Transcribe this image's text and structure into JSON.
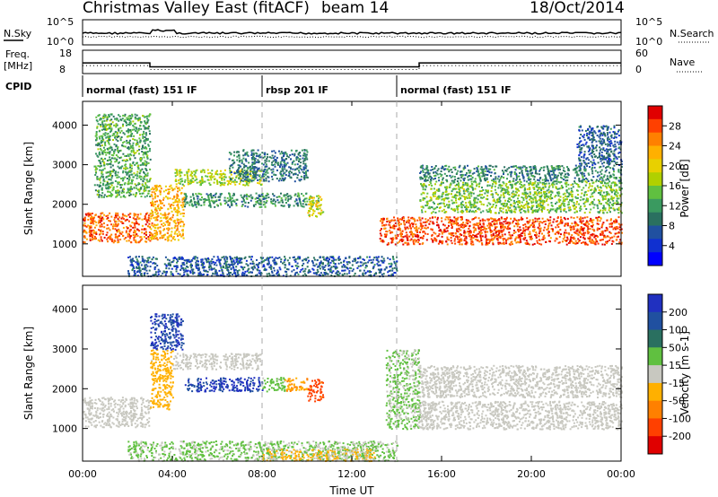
{
  "header": {
    "title": "Christmas Valley East (fitACF)",
    "beam": "beam 14",
    "date": "18/Oct/2014"
  },
  "panels": {
    "nsky_label": "N.Sky",
    "nsearch_label": "N.Search",
    "freq_label_1": "Freq.",
    "freq_label_2": "[MHz]",
    "nave_label": "Nave",
    "cpid_label": "CPID",
    "nsky_ticks": [
      "10^5",
      "10^0"
    ],
    "nsearch_ticks": [
      "10^5",
      "10^0"
    ],
    "freq_ticks": [
      "18",
      "8"
    ],
    "nave_ticks": [
      "60",
      "0"
    ],
    "cpid_segments": [
      {
        "label": "normal (fast) 151 IF",
        "start": 0,
        "end": 8
      },
      {
        "label": "rbsp 201 IF",
        "start": 8,
        "end": 14
      },
      {
        "label": "normal (fast) 151 IF",
        "start": 14,
        "end": 24
      }
    ]
  },
  "colorbars": {
    "power": {
      "label": "Power [dB]",
      "ticks": [
        "28",
        "24",
        "20",
        "16",
        "12",
        "8",
        "4"
      ],
      "colors": [
        "#e00000",
        "#ff4000",
        "#ff8000",
        "#ffb000",
        "#e8d000",
        "#b0d000",
        "#60c040",
        "#3a9a60",
        "#2a7060",
        "#2050a0",
        "#1030d0",
        "#0000ff"
      ]
    },
    "velocity": {
      "label": "Velocity [m s-1]",
      "ticks": [
        "200",
        "100",
        "50",
        "15",
        "-15",
        "-50",
        "-100",
        "-200"
      ],
      "colors": [
        "#2030c0",
        "#2050a0",
        "#2a7060",
        "#60c040",
        "#c8c8c0",
        "#ffb000",
        "#ff8000",
        "#ff4000",
        "#e00000"
      ]
    }
  },
  "axes": {
    "ylabel": "Slant Range [km]",
    "xlabel": "Time UT",
    "y_ticks": [
      "4000",
      "3000",
      "2000",
      "1000"
    ],
    "x_ticks": [
      "00:00",
      "04:00",
      "08:00",
      "12:00",
      "16:00",
      "20:00",
      "00:00"
    ]
  },
  "chart_data": [
    {
      "type": "line",
      "name": "N.Sky / N.Search",
      "x_range_hours": [
        0,
        24
      ],
      "y_scale": "log",
      "ylim": [
        "10^0",
        "10^5"
      ]
    },
    {
      "type": "line",
      "name": "Freq. / Nave",
      "x_hours": [
        0,
        3,
        3,
        15,
        15,
        24
      ],
      "freq_mhz": [
        12.5,
        12.5,
        10.5,
        10.5,
        12.5,
        12.5
      ],
      "ylim_freq": [
        8,
        18
      ],
      "ylim_nave": [
        0,
        60
      ]
    },
    {
      "type": "heatmap",
      "name": "Power",
      "x_range_hours": [
        0,
        24
      ],
      "ylim_km": [
        180,
        4600
      ],
      "value_range_db": [
        0,
        30
      ],
      "regions": [
        {
          "t0": 0.0,
          "t1": 3.0,
          "r0": 1050,
          "r1": 1800,
          "db": 26
        },
        {
          "t0": 3.0,
          "t1": 4.5,
          "r0": 1100,
          "r1": 2500,
          "db": 22
        },
        {
          "t0": 4.0,
          "t1": 8.0,
          "r0": 2500,
          "r1": 2900,
          "db": 16
        },
        {
          "t0": 4.5,
          "t1": 10.5,
          "r0": 1950,
          "r1": 2300,
          "db": 10
        },
        {
          "t0": 10.0,
          "t1": 10.7,
          "r0": 1700,
          "r1": 2250,
          "db": 18
        },
        {
          "t0": 0.5,
          "t1": 3.0,
          "r0": 2200,
          "r1": 4300,
          "db": 12
        },
        {
          "t0": 6.5,
          "t1": 10.0,
          "r0": 2600,
          "r1": 3400,
          "db": 8
        },
        {
          "t0": 2.0,
          "t1": 14.0,
          "r0": 200,
          "r1": 700,
          "db": 6
        },
        {
          "t0": 13.2,
          "t1": 24.0,
          "r0": 1000,
          "r1": 1700,
          "db": 27
        },
        {
          "t0": 15.0,
          "t1": 24.0,
          "r0": 1800,
          "r1": 2600,
          "db": 14
        },
        {
          "t0": 15.0,
          "t1": 24.0,
          "r0": 2600,
          "r1": 3000,
          "db": 9
        },
        {
          "t0": 22.0,
          "t1": 24.0,
          "r0": 3000,
          "r1": 4000,
          "db": 6
        }
      ]
    },
    {
      "type": "heatmap",
      "name": "Velocity",
      "x_range_hours": [
        0,
        24
      ],
      "ylim_km": [
        180,
        4600
      ],
      "value_range_ms": [
        -250,
        250
      ],
      "regions": [
        {
          "t0": 0.0,
          "t1": 3.0,
          "r0": 1050,
          "r1": 1800,
          "v": 0
        },
        {
          "t0": 3.0,
          "t1": 4.0,
          "r0": 1500,
          "r1": 3000,
          "v": -60
        },
        {
          "t0": 3.0,
          "t1": 4.5,
          "r0": 3000,
          "r1": 3900,
          "v": 220
        },
        {
          "t0": 4.0,
          "t1": 8.0,
          "r0": 2500,
          "r1": 2900,
          "v": 0
        },
        {
          "t0": 4.5,
          "t1": 8.0,
          "r0": 1950,
          "r1": 2300,
          "v": 220
        },
        {
          "t0": 8.0,
          "t1": 9.0,
          "r0": 1950,
          "r1": 2300,
          "v": 60
        },
        {
          "t0": 9.0,
          "t1": 10.0,
          "r0": 1950,
          "r1": 2300,
          "v": -80
        },
        {
          "t0": 10.0,
          "t1": 10.7,
          "r0": 1700,
          "r1": 2250,
          "v": -180
        },
        {
          "t0": 2.0,
          "t1": 14.0,
          "r0": 200,
          "r1": 700,
          "v": 40
        },
        {
          "t0": 8.0,
          "t1": 13.0,
          "r0": 200,
          "r1": 500,
          "v": -40
        },
        {
          "t0": 13.5,
          "t1": 15.0,
          "r0": 1000,
          "r1": 3000,
          "v": 40
        },
        {
          "t0": 15.0,
          "t1": 24.0,
          "r0": 1000,
          "r1": 1700,
          "v": 0
        },
        {
          "t0": 15.0,
          "t1": 24.0,
          "r0": 1800,
          "r1": 2600,
          "v": 0
        }
      ]
    }
  ]
}
